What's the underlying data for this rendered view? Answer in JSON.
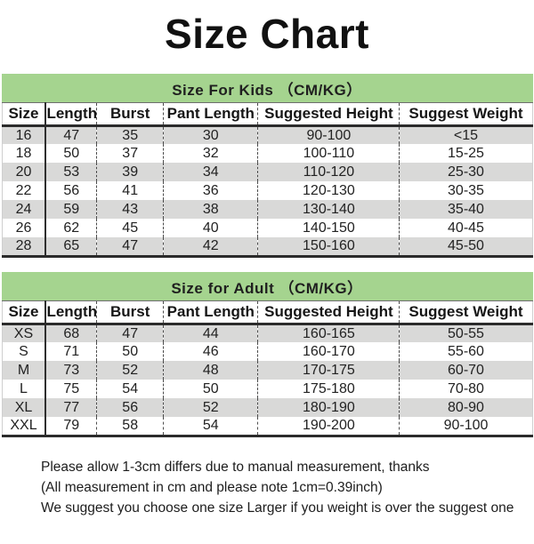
{
  "title": "Size Chart",
  "colors": {
    "banner_green": "#a5d48f",
    "row_gray": "#d9d9d8",
    "text": "#1d1d1d"
  },
  "tables": [
    {
      "banner": "Size For Kids （CM/KG）",
      "headers": [
        "Size",
        "Length",
        "Burst",
        "Pant Length",
        "Suggested Height",
        "Suggest Weight"
      ],
      "rows": [
        [
          "16",
          "47",
          "35",
          "30",
          "90-100",
          "<15"
        ],
        [
          "18",
          "50",
          "37",
          "32",
          "100-110",
          "15-25"
        ],
        [
          "20",
          "53",
          "39",
          "34",
          "110-120",
          "25-30"
        ],
        [
          "22",
          "56",
          "41",
          "36",
          "120-130",
          "30-35"
        ],
        [
          "24",
          "59",
          "43",
          "38",
          "130-140",
          "35-40"
        ],
        [
          "26",
          "62",
          "45",
          "40",
          "140-150",
          "40-45"
        ],
        [
          "28",
          "65",
          "47",
          "42",
          "150-160",
          "45-50"
        ]
      ]
    },
    {
      "banner": "Size for Adult （CM/KG）",
      "headers": [
        "Size",
        "Length",
        "Burst",
        "Pant Length",
        "Suggested Height",
        "Suggest Weight"
      ],
      "rows": [
        [
          "XS",
          "68",
          "47",
          "44",
          "160-165",
          "50-55"
        ],
        [
          "S",
          "71",
          "50",
          "46",
          "160-170",
          "55-60"
        ],
        [
          "M",
          "73",
          "52",
          "48",
          "170-175",
          "60-70"
        ],
        [
          "L",
          "75",
          "54",
          "50",
          "175-180",
          "70-80"
        ],
        [
          "XL",
          "77",
          "56",
          "52",
          "180-190",
          "80-90"
        ],
        [
          "XXL",
          "79",
          "58",
          "54",
          "190-200",
          "90-100"
        ]
      ]
    }
  ],
  "notes": [
    "Please allow 1-3cm differs due to manual measurement, thanks",
    "(All measurement in cm and please note 1cm=0.39inch)",
    "We suggest you choose one size Larger if you weight is over the suggest one"
  ]
}
